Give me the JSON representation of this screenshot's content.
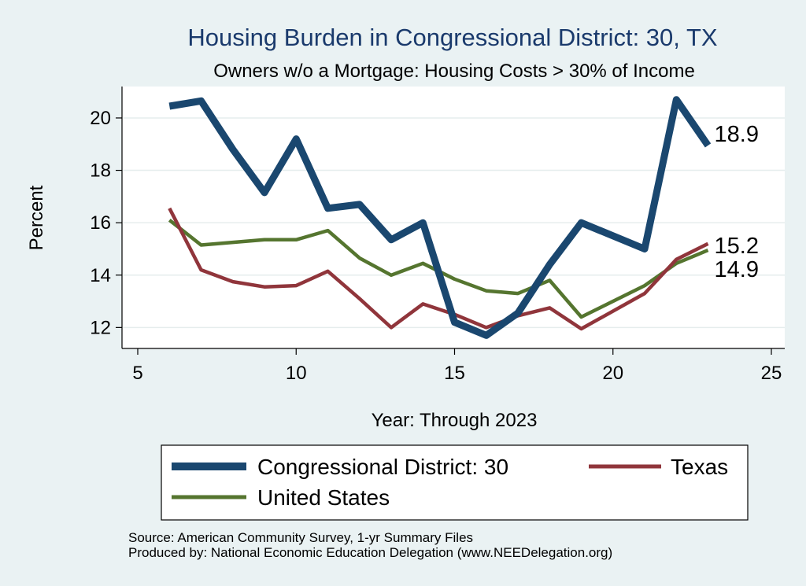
{
  "chart_data": {
    "type": "line",
    "title": "Housing Burden in Congressional District:  30, TX",
    "subtitle": "Owners w/o a Mortgage: Housing Costs > 30% of Income",
    "xlabel": "Year: Through 2023",
    "ylabel": "Percent",
    "xlim": [
      5,
      25
    ],
    "ylim": [
      11.2,
      21.2
    ],
    "xticks": [
      5,
      10,
      15,
      20,
      25
    ],
    "yticks": [
      12,
      14,
      16,
      18,
      20
    ],
    "grid": true,
    "x": [
      6,
      7,
      8,
      9,
      10,
      11,
      12,
      13,
      14,
      15,
      16,
      17,
      18,
      19,
      21,
      22,
      23
    ],
    "series": [
      {
        "name": "Congressional District:  30",
        "color": "#1a476f",
        "values": [
          20.45,
          20.65,
          18.8,
          17.15,
          19.2,
          16.55,
          16.7,
          15.35,
          16.0,
          12.2,
          11.7,
          12.55,
          14.4,
          16.0,
          15.0,
          20.7,
          18.95
        ],
        "end_label": "18.9"
      },
      {
        "name": "Texas",
        "color": "#90353b",
        "values": [
          16.55,
          14.2,
          13.75,
          13.55,
          13.6,
          14.15,
          13.1,
          12.0,
          12.9,
          12.5,
          12.0,
          12.45,
          12.75,
          11.95,
          13.3,
          14.6,
          15.2
        ],
        "end_label": "15.2"
      },
      {
        "name": "United States",
        "color": "#55752f",
        "values": [
          16.1,
          15.15,
          15.25,
          15.35,
          15.35,
          15.7,
          14.65,
          14.0,
          14.45,
          13.85,
          13.4,
          13.3,
          13.8,
          12.4,
          13.6,
          14.45,
          14.95
        ],
        "end_label": "14.9"
      }
    ],
    "legend": [
      "Congressional District:  30",
      "Texas",
      "United States"
    ],
    "legend_position": "bottom"
  },
  "footer": {
    "source": "Source: American Community Survey, 1-yr Summary Files",
    "producer": "Produced by: National Economic Education Delegation (www.NEEDelegation.org)"
  }
}
